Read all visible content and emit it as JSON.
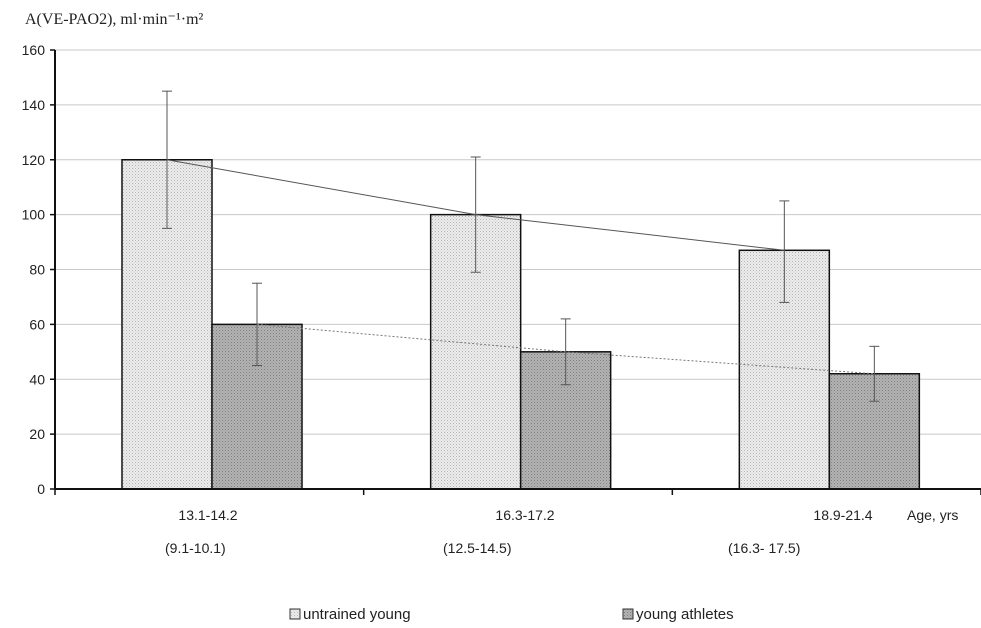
{
  "chart_data": {
    "type": "bar",
    "ylabel": "A(VE-PAO2), ml·min⁻¹·m²",
    "xlabel": "Age, yrs",
    "ylim": [
      0,
      160
    ],
    "yticks": [
      0,
      20,
      40,
      60,
      80,
      100,
      120,
      140,
      160
    ],
    "categories": [
      "13.1-14.2",
      "16.3-17.2",
      "18.9-21.4"
    ],
    "categories_secondary": [
      "(9.1-10.1)",
      "(12.5-14.5)",
      "(16.3- 17.5)"
    ],
    "series": [
      {
        "name": "untrained young",
        "values": [
          120,
          100,
          87
        ],
        "error_low": [
          95,
          79,
          68
        ],
        "error_high": [
          145,
          121,
          105
        ],
        "color": "#e4e4e4"
      },
      {
        "name": "young athletes",
        "values": [
          60,
          50,
          42
        ],
        "error_low": [
          45,
          38,
          32
        ],
        "error_high": [
          75,
          62,
          52
        ],
        "color": "#a9a9a9"
      }
    ],
    "trendlines": true,
    "grid": "horizontal",
    "legend_position": "bottom"
  }
}
